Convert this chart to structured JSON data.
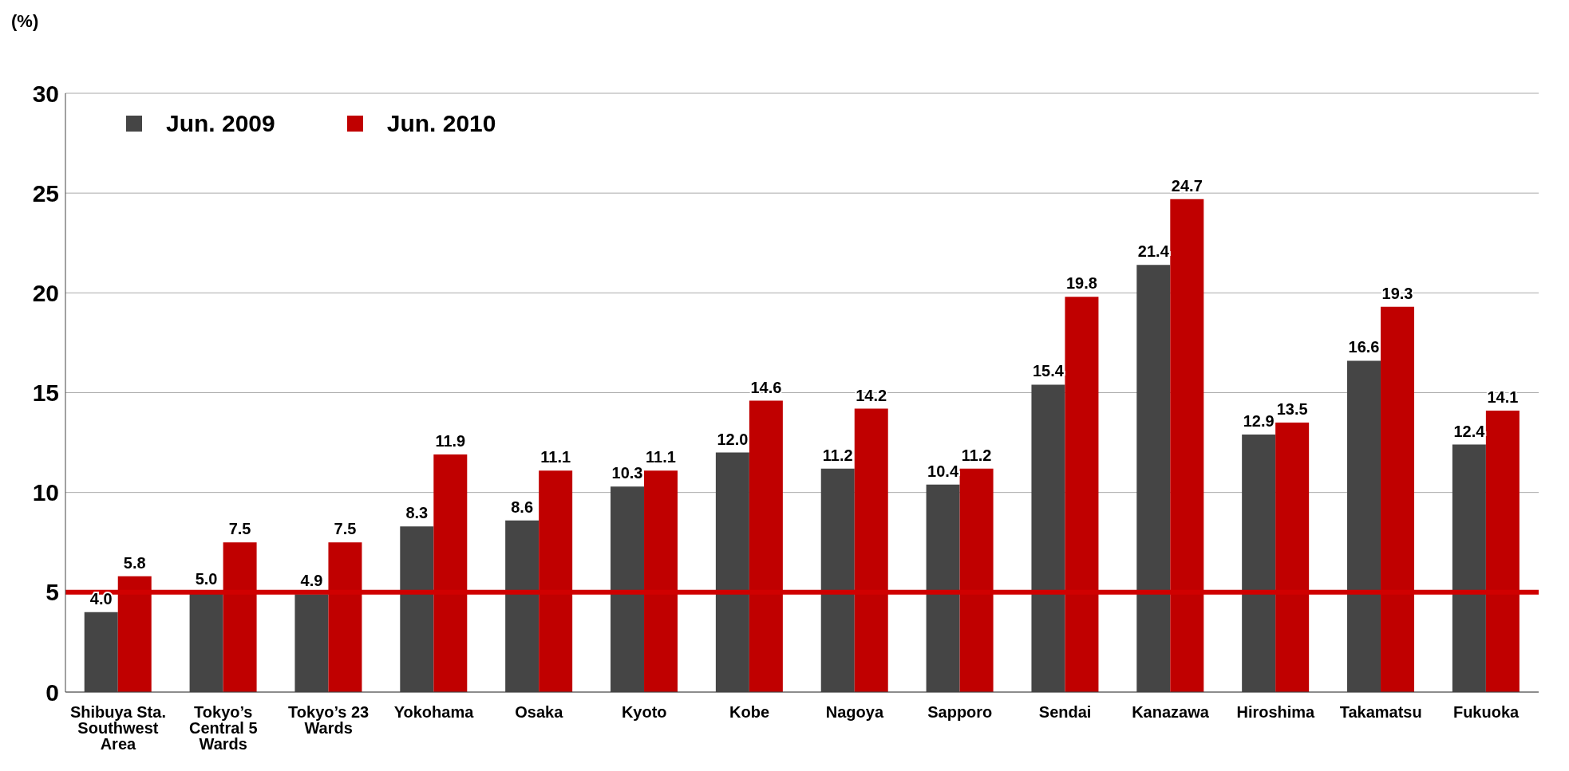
{
  "chart_data": {
    "type": "bar",
    "ylabel": "(%)",
    "categories": [
      "Shibuya Sta. Southwest Area",
      "Tokyo’s Central 5 Wards",
      "Tokyo’s 23 Wards",
      "Yokohama",
      "Osaka",
      "Kyoto",
      "Kobe",
      "Nagoya",
      "Sapporo",
      "Sendai",
      "Kanazawa",
      "Hiroshima",
      "Takamatsu",
      "Fukuoka"
    ],
    "series": [
      {
        "name": "Jun. 2009",
        "color": "#454545",
        "values": [
          4,
          5,
          4.9,
          8.3,
          8.6,
          10.3,
          12,
          11.2,
          10.4,
          15.4,
          21.4,
          12.9,
          16.6,
          12.4
        ],
        "value_labels": [
          "4.0",
          "5.0",
          "4.9",
          "8.3",
          "8.6",
          "10.3",
          "12.0",
          "11.2",
          "10.4",
          "15.4",
          "21.4",
          "12.9",
          "16.6",
          "12.4"
        ]
      },
      {
        "name": "Jun. 2010",
        "color": "#c00000",
        "values": [
          5.8,
          7.5,
          7.5,
          11.9,
          11.1,
          11.1,
          14.6,
          14.2,
          11.2,
          19.8,
          24.7,
          13.5,
          19.3,
          14.1
        ],
        "value_labels": [
          "5.8",
          "7.5",
          "7.5",
          "11.9",
          "11.1",
          "11.1",
          "14.6",
          "14.2",
          "11.2",
          "19.8",
          "24.7",
          "13.5",
          "19.3",
          "14.1"
        ]
      }
    ],
    "ylim": [
      0,
      30
    ],
    "yticks": [
      0,
      5,
      10,
      15,
      20,
      25,
      30
    ],
    "grid": "y",
    "legend": "top left",
    "ref_lines": [
      {
        "axis": "y",
        "value": 5,
        "color": "#d00000"
      }
    ]
  }
}
